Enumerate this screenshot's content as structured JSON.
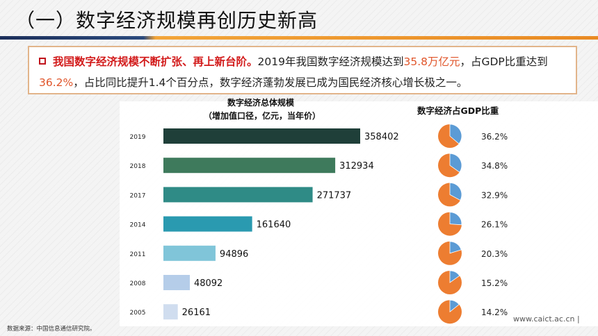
{
  "header": {
    "title": "（一）数字经济规模再创历史新高"
  },
  "callout": {
    "bold": "我国数字经济规模不断扩张、再上新台阶。",
    "t1": "2019年我国数字经济规模达到",
    "v1": "35.8万亿元",
    "t2": "，占GDP比重达到",
    "v2": "36.2%",
    "t3": "，占比同比提升1.4个百分点，数字经济蓬勃发展已成为国民经济核心增长极之一。"
  },
  "footer": {
    "source": "数据来源：中国信息通信研究院。",
    "url": "www.caict.ac.cn  |"
  },
  "chart_data": [
    {
      "type": "bar",
      "orientation": "horizontal",
      "title": "数字经济总体规模",
      "subtitle": "（增加值口径，亿元，当年价）",
      "categories": [
        "2019",
        "2018",
        "2017",
        "2014",
        "2011",
        "2008",
        "2005"
      ],
      "values": [
        358402,
        312934,
        271737,
        161640,
        94896,
        48092,
        26161
      ],
      "colors": [
        "#1f3f39",
        "#3e7a5c",
        "#2f8b86",
        "#2a9ab0",
        "#80c5d9",
        "#b5cde9",
        "#d0ddef"
      ]
    },
    {
      "type": "pie",
      "title": "数字经济占GDP比重",
      "categories": [
        "2019",
        "2018",
        "2017",
        "2014",
        "2011",
        "2008",
        "2005"
      ],
      "values": [
        36.2,
        34.8,
        32.9,
        26.1,
        20.3,
        15.2,
        14.2
      ],
      "labels": [
        "36.2%",
        "34.8%",
        "32.9%",
        "26.1%",
        "20.3%",
        "15.2%",
        "14.2%"
      ],
      "colors": {
        "share": "#5b9bd5",
        "rest": "#ed7d31"
      }
    }
  ]
}
